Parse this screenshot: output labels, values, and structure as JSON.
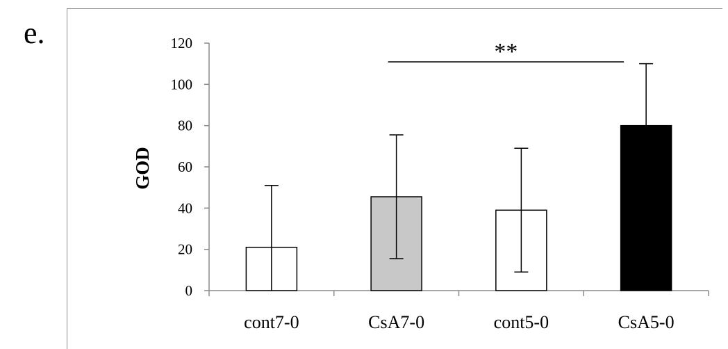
{
  "panel_label": "e.",
  "chart_data": {
    "type": "bar",
    "title": "",
    "xlabel": "",
    "ylabel": "GOD",
    "ylim": [
      0,
      120
    ],
    "yticks": [
      0,
      20,
      40,
      60,
      80,
      100,
      120
    ],
    "categories": [
      "cont7-0",
      "CsA7-0",
      "cont5-0",
      "CsA5-0"
    ],
    "values": [
      21,
      45.5,
      39,
      80
    ],
    "error": [
      30,
      30,
      30,
      30
    ],
    "bar_colors": [
      "#ffffff",
      "#c8c8c8",
      "#ffffff",
      "#000000"
    ],
    "grid": false,
    "significance": {
      "from_category": "CsA7-0",
      "to_category": "CsA5-0",
      "label": "**"
    }
  }
}
